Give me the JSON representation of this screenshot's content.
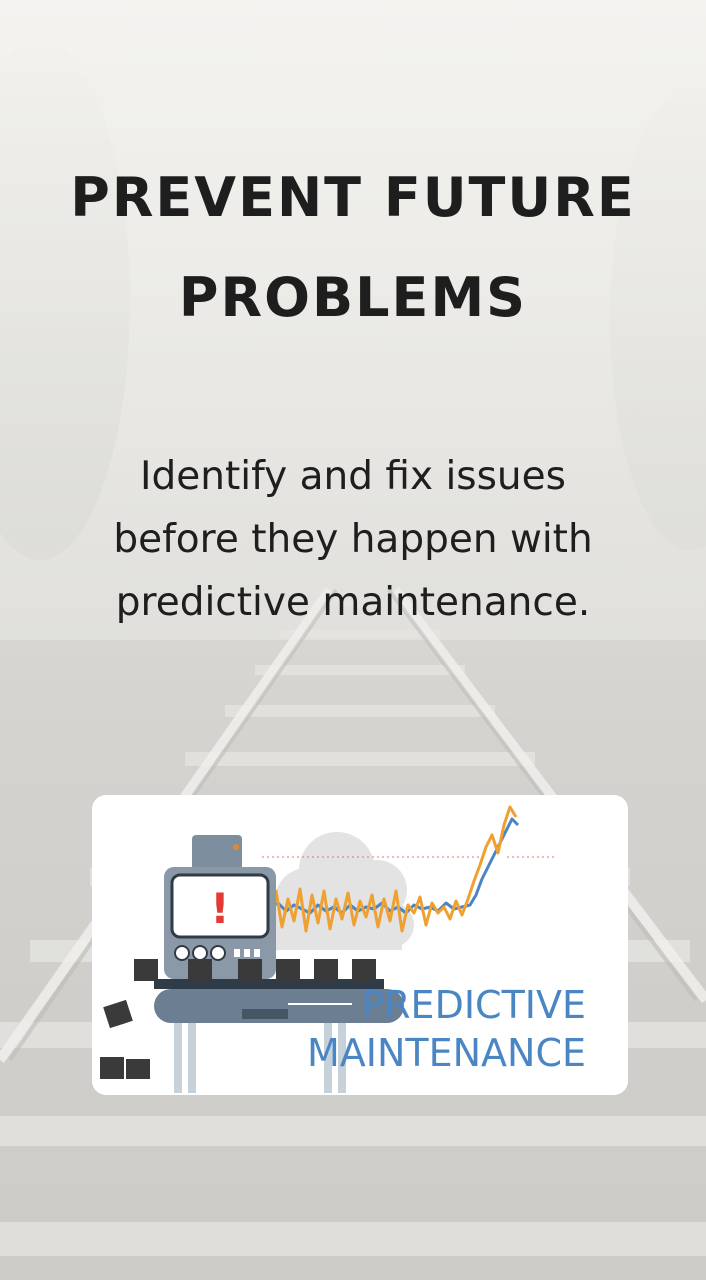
{
  "headline": {
    "line1": "PREVENT FUTURE",
    "line2": "PROBLEMS"
  },
  "body_text": "Identify and fix issues before they happen with predictive maintenance.",
  "illustration": {
    "word1": "PREDICTIVE",
    "word2": "MAINTENANCE",
    "alert_mark": "!",
    "colors": {
      "accent_blue": "#4a86c4",
      "accent_orange": "#f0a030",
      "alert_red": "#e53935",
      "machine_gray": "#8a98a8"
    },
    "icons": [
      "machine-icon",
      "conveyor-icon",
      "box-icon",
      "cloud-icon",
      "trend-line-icon"
    ]
  },
  "background": {
    "scene": "railway-track-icon"
  }
}
